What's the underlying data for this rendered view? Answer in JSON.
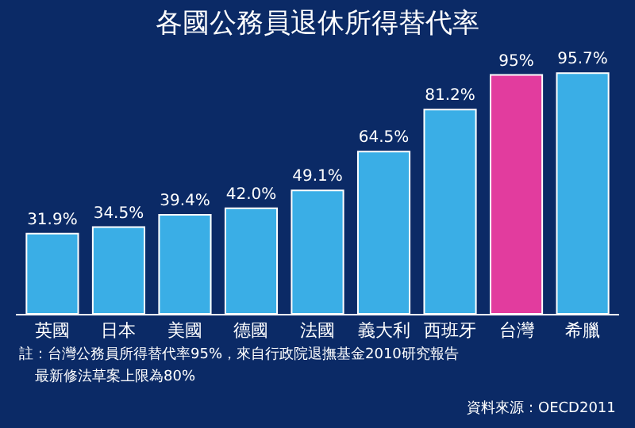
{
  "chart_data": {
    "type": "bar",
    "title": "各國公務員退休所得替代率",
    "categories": [
      "英國",
      "日本",
      "美國",
      "德國",
      "法國",
      "義大利",
      "西班牙",
      "台灣",
      "希臘"
    ],
    "values": [
      31.9,
      34.5,
      39.4,
      42.0,
      49.1,
      64.5,
      81.2,
      95,
      95.7
    ],
    "colors": [
      "#3aaee6",
      "#3aaee6",
      "#3aaee6",
      "#3aaee6",
      "#3aaee6",
      "#3aaee6",
      "#3aaee6",
      "#e23c9e",
      "#3aaee6"
    ],
    "value_labels": [
      "31.9%",
      "34.5%",
      "39.4%",
      "42.0%",
      "49.1%",
      "64.5%",
      "81.2%",
      "95%",
      "95.7%"
    ],
    "annotations": [
      "註：台灣公務員所得替代率95%，來自行政院退撫基金2010研究報告",
      "最新修法草案上限為80%",
      "資料來源：OECD2011"
    ],
    "grid": false,
    "legend": false
  }
}
